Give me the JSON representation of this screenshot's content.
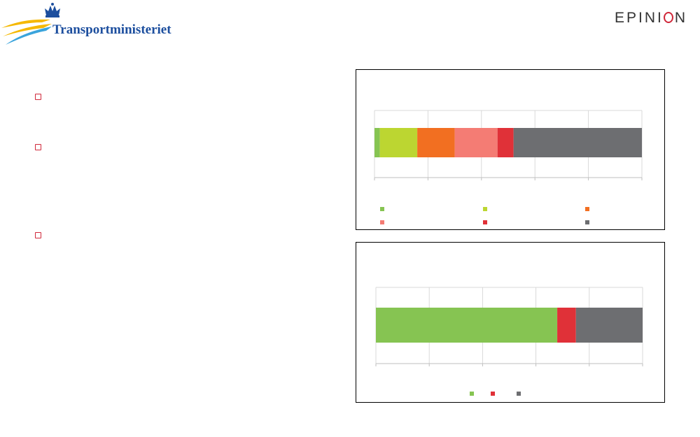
{
  "logo": {
    "name": "Transportministeriet"
  },
  "brand": {
    "name": "EPINI",
    "tail": "N"
  },
  "bullets": [
    "",
    "",
    ""
  ],
  "colors": {
    "green": "#86c452",
    "lime": "#bcd631",
    "orange": "#f26f21",
    "salmon": "#f47c74",
    "red": "#e03138",
    "gray": "#6d6e71",
    "logo_blue": "#1c4e9e",
    "bullet_red": "#d0283a"
  },
  "chart_data": [
    {
      "type": "bar",
      "orientation": "horizontal",
      "stacked": true,
      "xlim": [
        0,
        100
      ],
      "grid": true,
      "legend_position": "bottom",
      "series": [
        {
          "values": [
            2
          ],
          "color": "#86c452"
        },
        {
          "values": [
            14
          ],
          "color": "#bcd631"
        },
        {
          "values": [
            14
          ],
          "color": "#f26f21"
        },
        {
          "values": [
            16
          ],
          "color": "#f47c74"
        },
        {
          "values": [
            6
          ],
          "color": "#e03138"
        },
        {
          "values": [
            48
          ],
          "color": "#6d6e71"
        }
      ]
    },
    {
      "type": "bar",
      "orientation": "horizontal",
      "stacked": true,
      "xlim": [
        0,
        100
      ],
      "grid": true,
      "legend_position": "bottom",
      "series": [
        {
          "values": [
            68
          ],
          "color": "#86c452"
        },
        {
          "values": [
            7
          ],
          "color": "#e03138"
        },
        {
          "values": [
            25
          ],
          "color": "#6d6e71"
        }
      ]
    }
  ]
}
